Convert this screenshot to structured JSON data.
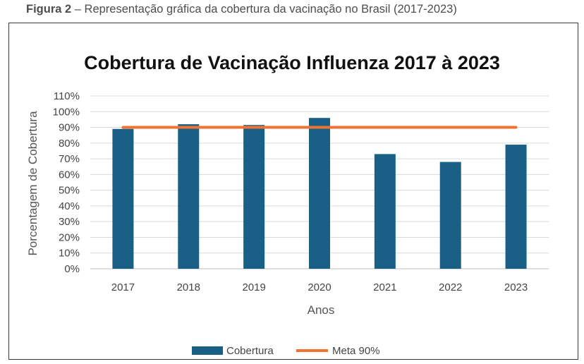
{
  "caption": {
    "label": "Figura 2",
    "text": " – Representação gráfica da cobertura da vacinação no Brasil (2017-2023)"
  },
  "chart_data": {
    "type": "bar",
    "title": "Cobertura de Vacinação Influenza 2017 à 2023",
    "xlabel": "Anos",
    "ylabel": "Porcentagem de Cobertura",
    "categories": [
      "2017",
      "2018",
      "2019",
      "2020",
      "2021",
      "2022",
      "2023"
    ],
    "ylim": [
      0,
      110
    ],
    "yticks": [
      "0%",
      "10%",
      "20%",
      "30%",
      "40%",
      "50%",
      "60%",
      "70%",
      "80%",
      "90%",
      "100%",
      "110%"
    ],
    "grid": true,
    "legend_position": "bottom",
    "series": [
      {
        "name": "Cobertura",
        "kind": "bar",
        "color": "#1a5f86",
        "values": [
          89,
          92,
          91.5,
          96,
          73,
          68,
          79
        ]
      },
      {
        "name": "Meta 90%",
        "kind": "line",
        "color": "#ee7433",
        "values": [
          90,
          90,
          90,
          90,
          90,
          90,
          90
        ]
      }
    ]
  }
}
